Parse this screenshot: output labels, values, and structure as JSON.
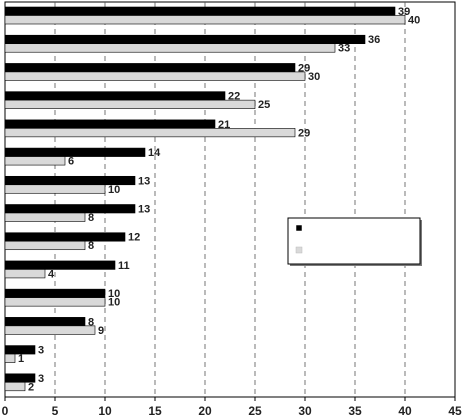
{
  "chart_data": {
    "type": "bar",
    "orientation": "horizontal",
    "title": "",
    "xlabel": "",
    "ylabel": "",
    "xlim": [
      0,
      45
    ],
    "x_ticks": [
      0,
      5,
      10,
      15,
      20,
      25,
      30,
      35,
      40,
      45
    ],
    "grid": "vertical dashed",
    "legend_position": "center-right",
    "series": [
      {
        "name": "",
        "color": "#000000",
        "values": [
          39,
          36,
          29,
          22,
          21,
          14,
          13,
          13,
          12,
          11,
          10,
          8,
          3,
          3
        ]
      },
      {
        "name": "",
        "color": "#d9d9d9",
        "values": [
          40,
          33,
          30,
          25,
          29,
          6,
          10,
          8,
          8,
          4,
          10,
          9,
          1,
          2
        ]
      }
    ]
  }
}
